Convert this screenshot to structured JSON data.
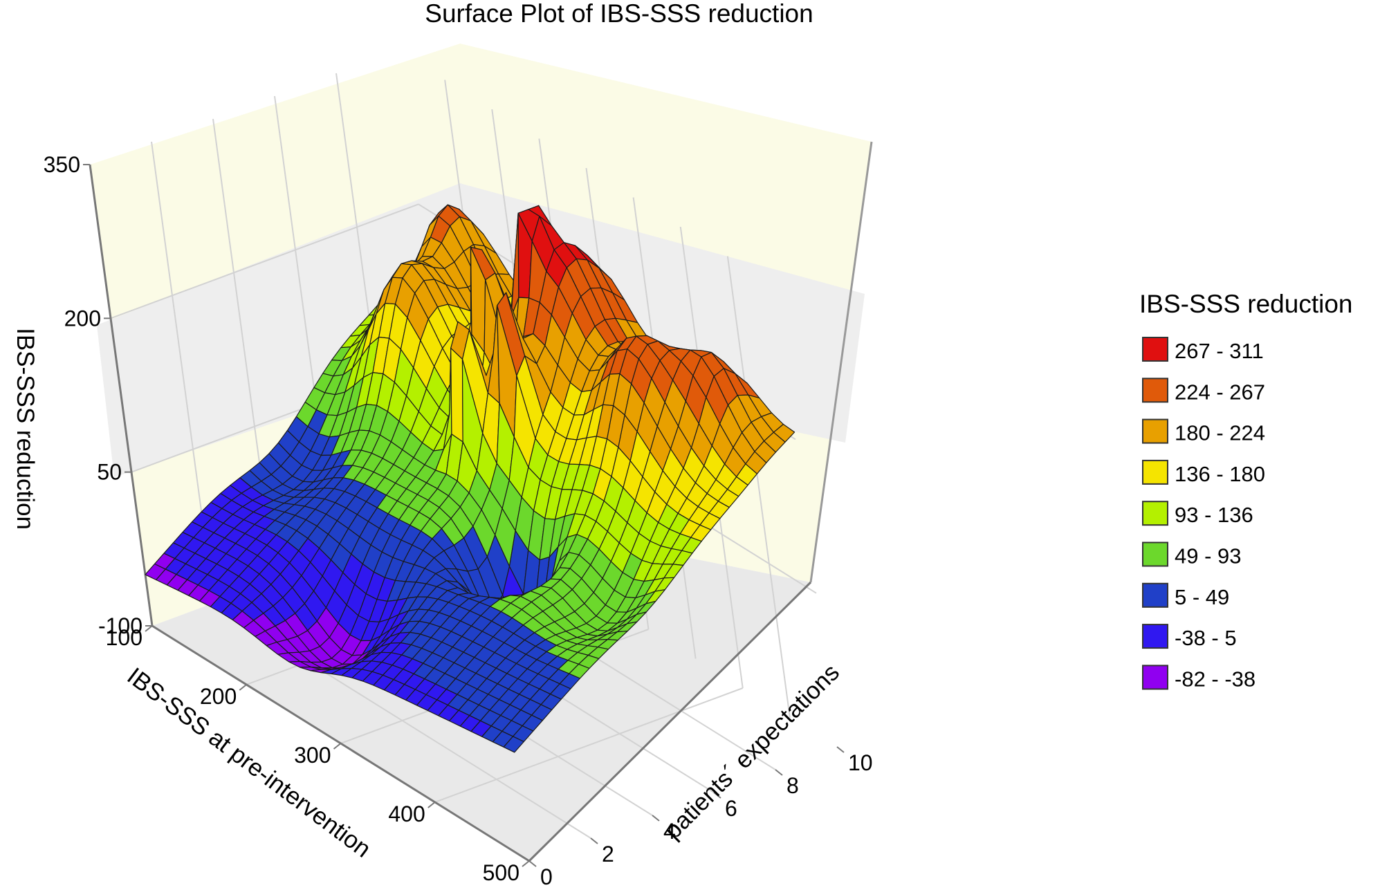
{
  "chart_data": {
    "type": "surface",
    "title": "Surface Plot of IBS-SSS reduction",
    "xlabel": "IBS-SSS at pre-intervention",
    "ylabel": "patients´ expectations",
    "zlabel": "IBS-SSS reduction",
    "x_ticks": [
      "100",
      "200",
      "300",
      "400",
      "500"
    ],
    "y_ticks": [
      "0",
      "2",
      "4",
      "6",
      "8",
      "10"
    ],
    "z_ticks": [
      "-100",
      "50",
      "200",
      "350"
    ],
    "x_range": [
      100,
      500
    ],
    "y_range": [
      0,
      10
    ],
    "z_range": [
      -100,
      350
    ],
    "grid": true,
    "legend_position": "right",
    "legend": {
      "title": "IBS-SSS reduction",
      "items": [
        {
          "label": "267 - 311",
          "color": "#e01010"
        },
        {
          "label": "224 - 267",
          "color": "#e05a0a"
        },
        {
          "label": "180 - 224",
          "color": "#e8a000"
        },
        {
          "label": "136 - 180",
          "color": "#f5e400"
        },
        {
          "label": "93 - 136",
          "color": "#b4f000"
        },
        {
          "label": "49 - 93",
          "color": "#6cd82c"
        },
        {
          "label": "5 - 49",
          "color": "#2040c8"
        },
        {
          "label": "-38 - 5",
          "color": "#3018f0"
        },
        {
          "label": "-82 - -38",
          "color": "#9000f0"
        }
      ]
    }
  }
}
